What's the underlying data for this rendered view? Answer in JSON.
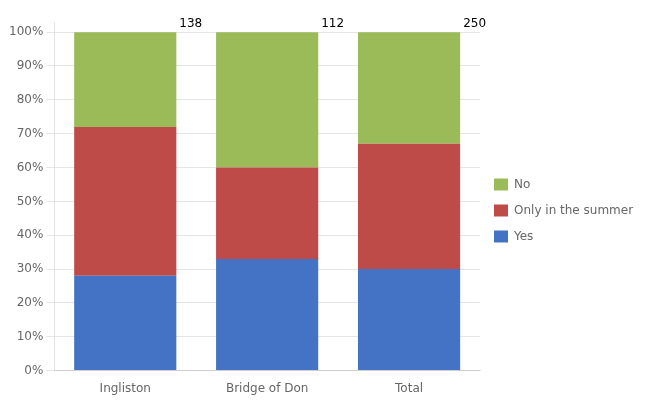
{
  "chart_data": {
    "type": "bar",
    "stacked": true,
    "categories": [
      "Ingliston",
      "Bridge of Don",
      "Total"
    ],
    "series": [
      {
        "name": "Yes",
        "color": "#4472C4",
        "values": [
          28,
          33,
          30
        ]
      },
      {
        "name": "Only in the summer",
        "color": "#BE4B48",
        "values": [
          44,
          27,
          37
        ]
      },
      {
        "name": "No",
        "color": "#9BBB59",
        "values": [
          28,
          40,
          33
        ]
      }
    ],
    "totals": [
      138,
      112,
      250
    ],
    "ylim": [
      0,
      103
    ],
    "yticks": [
      {
        "value": 0,
        "label": "0%"
      },
      {
        "value": 10,
        "label": "10%"
      },
      {
        "value": 20,
        "label": "20%"
      },
      {
        "value": 30,
        "label": "30%"
      },
      {
        "value": 40,
        "label": "40%"
      },
      {
        "value": 50,
        "label": "50%"
      },
      {
        "value": 60,
        "label": "60%"
      },
      {
        "value": 70,
        "label": "70%"
      },
      {
        "value": 80,
        "label": "80%"
      },
      {
        "value": 90,
        "label": "90%"
      },
      {
        "value": 100,
        "label": "100%"
      }
    ],
    "grid": "y",
    "legend": "right"
  }
}
